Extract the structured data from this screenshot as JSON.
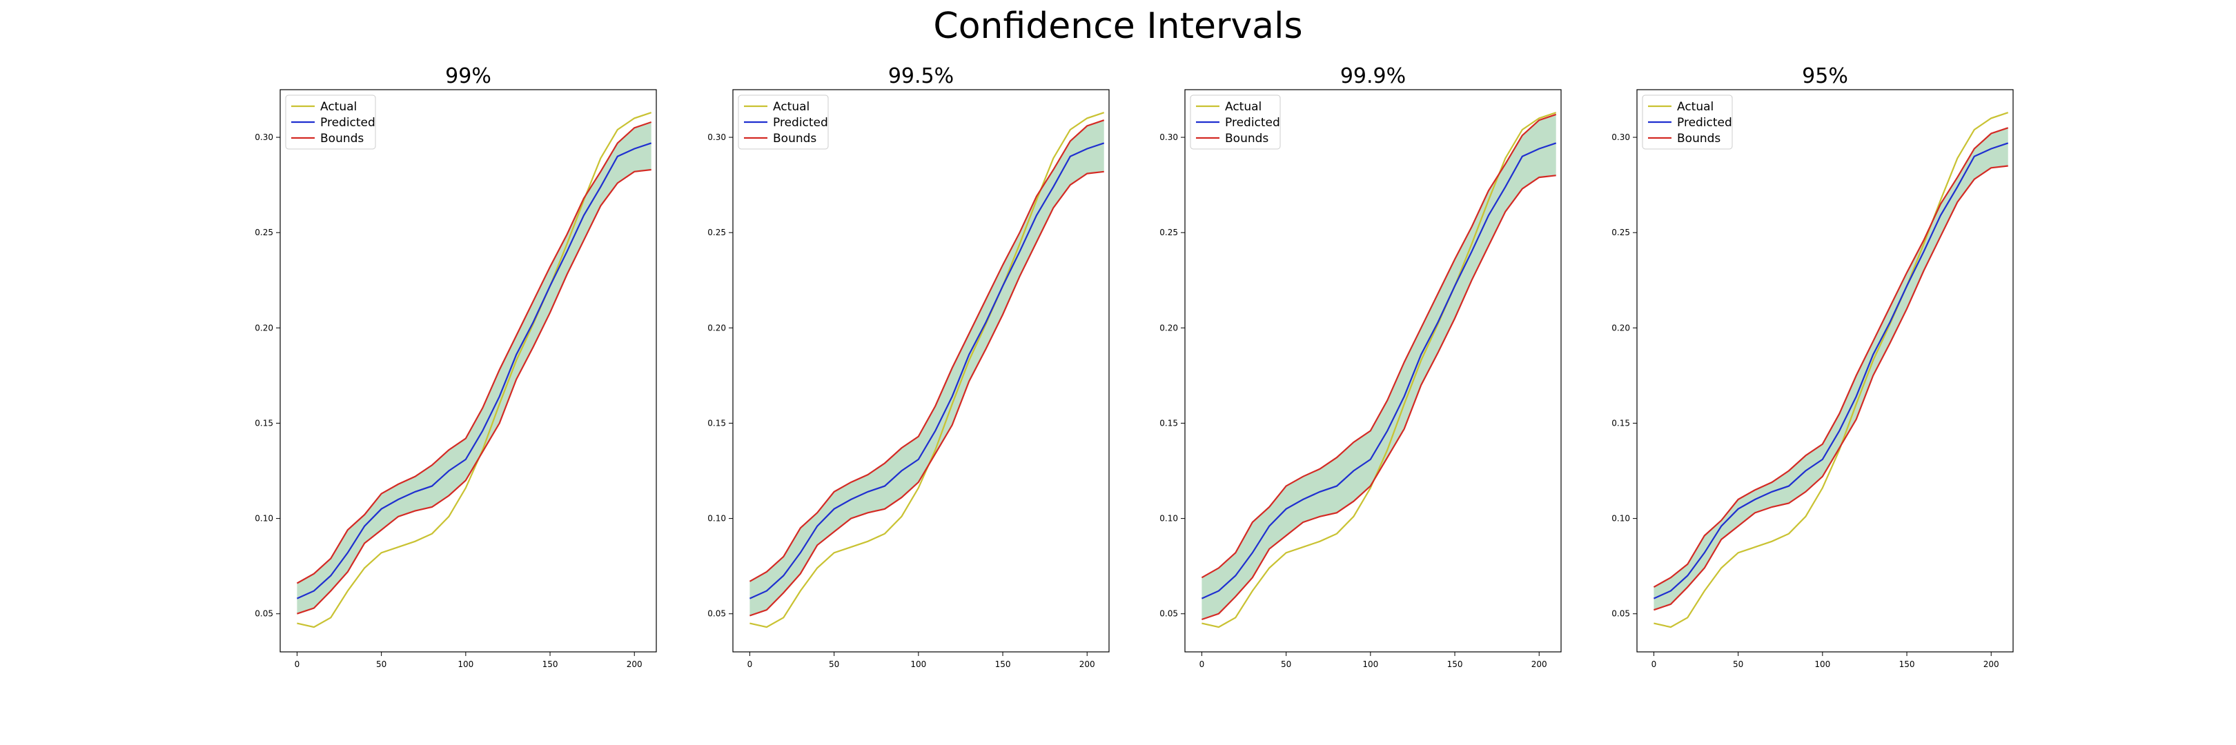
{
  "figure": {
    "title": "Confidence Intervals"
  },
  "colors": {
    "actual": "#c9c232",
    "predicted": "#1f2fd0",
    "bounds": "#d42a24",
    "band": "#8cc59a"
  },
  "legend": {
    "placement": "upper-left",
    "entries": [
      "Actual",
      "Predicted",
      "Bounds"
    ]
  },
  "chart_data": [
    {
      "type": "line",
      "title": "99%",
      "xlabel": "",
      "ylabel": "",
      "xlim": [
        -10,
        213
      ],
      "ylim": [
        0.03,
        0.325
      ],
      "xticks": [
        0,
        50,
        100,
        150,
        200
      ],
      "yticks": [
        0.05,
        0.1,
        0.15,
        0.2,
        0.25,
        0.3
      ],
      "xtick_labels": [
        "0",
        "50",
        "100",
        "150",
        "200"
      ],
      "ytick_labels": [
        "0.05",
        "0.10",
        "0.15",
        "0.20",
        "0.25",
        "0.30"
      ],
      "grid": false,
      "x": [
        0,
        10,
        20,
        30,
        40,
        50,
        60,
        70,
        80,
        90,
        100,
        110,
        120,
        130,
        140,
        150,
        160,
        170,
        180,
        190,
        200,
        210
      ],
      "series": [
        {
          "name": "Actual",
          "values": [
            0.045,
            0.043,
            0.048,
            0.062,
            0.074,
            0.082,
            0.085,
            0.088,
            0.092,
            0.101,
            0.116,
            0.136,
            0.16,
            0.183,
            0.202,
            0.222,
            0.244,
            0.267,
            0.289,
            0.304,
            0.31,
            0.313
          ]
        },
        {
          "name": "Predicted",
          "values": [
            0.058,
            0.062,
            0.07,
            0.082,
            0.096,
            0.105,
            0.11,
            0.114,
            0.117,
            0.125,
            0.131,
            0.146,
            0.164,
            0.186,
            0.203,
            0.222,
            0.24,
            0.259,
            0.274,
            0.29,
            0.294,
            0.297
          ]
        },
        {
          "name": "Bounds",
          "values": [
            0.066,
            0.071,
            0.079,
            0.094,
            0.102,
            0.113,
            0.118,
            0.122,
            0.128,
            0.136,
            0.142,
            0.158,
            0.178,
            0.196,
            0.214,
            0.232,
            0.249,
            0.268,
            0.282,
            0.297,
            0.305,
            0.308
          ]
        },
        {
          "name": "",
          "values": [
            0.05,
            0.053,
            0.062,
            0.072,
            0.087,
            0.094,
            0.101,
            0.104,
            0.106,
            0.112,
            0.12,
            0.135,
            0.15,
            0.173,
            0.19,
            0.208,
            0.228,
            0.246,
            0.264,
            0.276,
            0.282,
            0.283
          ]
        }
      ]
    },
    {
      "type": "line",
      "title": "99.5%",
      "xlabel": "",
      "ylabel": "",
      "xlim": [
        -10,
        213
      ],
      "ylim": [
        0.03,
        0.325
      ],
      "xticks": [
        0,
        50,
        100,
        150,
        200
      ],
      "yticks": [
        0.05,
        0.1,
        0.15,
        0.2,
        0.25,
        0.3
      ],
      "xtick_labels": [
        "0",
        "50",
        "100",
        "150",
        "200"
      ],
      "ytick_labels": [
        "0.05",
        "0.10",
        "0.15",
        "0.20",
        "0.25",
        "0.30"
      ],
      "grid": false,
      "x": [
        0,
        10,
        20,
        30,
        40,
        50,
        60,
        70,
        80,
        90,
        100,
        110,
        120,
        130,
        140,
        150,
        160,
        170,
        180,
        190,
        200,
        210
      ],
      "series": [
        {
          "name": "Actual",
          "values": [
            0.045,
            0.043,
            0.048,
            0.062,
            0.074,
            0.082,
            0.085,
            0.088,
            0.092,
            0.101,
            0.116,
            0.136,
            0.16,
            0.183,
            0.202,
            0.222,
            0.244,
            0.267,
            0.289,
            0.304,
            0.31,
            0.313
          ]
        },
        {
          "name": "Predicted",
          "values": [
            0.058,
            0.062,
            0.07,
            0.082,
            0.096,
            0.105,
            0.11,
            0.114,
            0.117,
            0.125,
            0.131,
            0.146,
            0.164,
            0.186,
            0.203,
            0.222,
            0.24,
            0.259,
            0.274,
            0.29,
            0.294,
            0.297
          ]
        },
        {
          "name": "Bounds",
          "values": [
            0.067,
            0.072,
            0.08,
            0.095,
            0.103,
            0.114,
            0.119,
            0.123,
            0.129,
            0.137,
            0.143,
            0.159,
            0.179,
            0.197,
            0.215,
            0.233,
            0.25,
            0.269,
            0.283,
            0.298,
            0.306,
            0.309
          ]
        },
        {
          "name": "",
          "values": [
            0.049,
            0.052,
            0.061,
            0.071,
            0.086,
            0.093,
            0.1,
            0.103,
            0.105,
            0.111,
            0.119,
            0.134,
            0.149,
            0.172,
            0.189,
            0.207,
            0.227,
            0.245,
            0.263,
            0.275,
            0.281,
            0.282
          ]
        }
      ]
    },
    {
      "type": "line",
      "title": "99.9%",
      "xlabel": "",
      "ylabel": "",
      "xlim": [
        -10,
        213
      ],
      "ylim": [
        0.03,
        0.325
      ],
      "xticks": [
        0,
        50,
        100,
        150,
        200
      ],
      "yticks": [
        0.05,
        0.1,
        0.15,
        0.2,
        0.25,
        0.3
      ],
      "xtick_labels": [
        "0",
        "50",
        "100",
        "150",
        "200"
      ],
      "ytick_labels": [
        "0.05",
        "0.10",
        "0.15",
        "0.20",
        "0.25",
        "0.30"
      ],
      "grid": false,
      "x": [
        0,
        10,
        20,
        30,
        40,
        50,
        60,
        70,
        80,
        90,
        100,
        110,
        120,
        130,
        140,
        150,
        160,
        170,
        180,
        190,
        200,
        210
      ],
      "series": [
        {
          "name": "Actual",
          "values": [
            0.045,
            0.043,
            0.048,
            0.062,
            0.074,
            0.082,
            0.085,
            0.088,
            0.092,
            0.101,
            0.116,
            0.136,
            0.16,
            0.183,
            0.202,
            0.222,
            0.244,
            0.267,
            0.289,
            0.304,
            0.31,
            0.313
          ]
        },
        {
          "name": "Predicted",
          "values": [
            0.058,
            0.062,
            0.07,
            0.082,
            0.096,
            0.105,
            0.11,
            0.114,
            0.117,
            0.125,
            0.131,
            0.146,
            0.164,
            0.186,
            0.203,
            0.222,
            0.24,
            0.259,
            0.274,
            0.29,
            0.294,
            0.297
          ]
        },
        {
          "name": "Bounds",
          "values": [
            0.069,
            0.074,
            0.082,
            0.098,
            0.106,
            0.117,
            0.122,
            0.126,
            0.132,
            0.14,
            0.146,
            0.162,
            0.182,
            0.2,
            0.218,
            0.236,
            0.253,
            0.272,
            0.286,
            0.301,
            0.309,
            0.312
          ]
        },
        {
          "name": "",
          "values": [
            0.047,
            0.05,
            0.059,
            0.069,
            0.084,
            0.091,
            0.098,
            0.101,
            0.103,
            0.109,
            0.117,
            0.132,
            0.147,
            0.17,
            0.187,
            0.205,
            0.225,
            0.243,
            0.261,
            0.273,
            0.279,
            0.28
          ]
        }
      ]
    },
    {
      "type": "line",
      "title": "95%",
      "xlabel": "",
      "ylabel": "",
      "xlim": [
        -10,
        213
      ],
      "ylim": [
        0.03,
        0.325
      ],
      "xticks": [
        0,
        50,
        100,
        150,
        200
      ],
      "yticks": [
        0.05,
        0.1,
        0.15,
        0.2,
        0.25,
        0.3
      ],
      "xtick_labels": [
        "0",
        "50",
        "100",
        "150",
        "200"
      ],
      "ytick_labels": [
        "0.05",
        "0.10",
        "0.15",
        "0.20",
        "0.25",
        "0.30"
      ],
      "grid": false,
      "x": [
        0,
        10,
        20,
        30,
        40,
        50,
        60,
        70,
        80,
        90,
        100,
        110,
        120,
        130,
        140,
        150,
        160,
        170,
        180,
        190,
        200,
        210
      ],
      "series": [
        {
          "name": "Actual",
          "values": [
            0.045,
            0.043,
            0.048,
            0.062,
            0.074,
            0.082,
            0.085,
            0.088,
            0.092,
            0.101,
            0.116,
            0.136,
            0.16,
            0.183,
            0.202,
            0.222,
            0.244,
            0.267,
            0.289,
            0.304,
            0.31,
            0.313
          ]
        },
        {
          "name": "Predicted",
          "values": [
            0.058,
            0.062,
            0.07,
            0.082,
            0.096,
            0.105,
            0.11,
            0.114,
            0.117,
            0.125,
            0.131,
            0.146,
            0.164,
            0.186,
            0.203,
            0.222,
            0.24,
            0.259,
            0.274,
            0.29,
            0.294,
            0.297
          ]
        },
        {
          "name": "Bounds",
          "values": [
            0.064,
            0.069,
            0.076,
            0.091,
            0.099,
            0.11,
            0.115,
            0.119,
            0.125,
            0.133,
            0.139,
            0.155,
            0.175,
            0.193,
            0.211,
            0.229,
            0.246,
            0.265,
            0.279,
            0.294,
            0.302,
            0.305
          ]
        },
        {
          "name": "",
          "values": [
            0.052,
            0.055,
            0.064,
            0.074,
            0.089,
            0.096,
            0.103,
            0.106,
            0.108,
            0.114,
            0.122,
            0.137,
            0.152,
            0.175,
            0.192,
            0.21,
            0.23,
            0.248,
            0.266,
            0.278,
            0.284,
            0.285
          ]
        }
      ]
    }
  ]
}
